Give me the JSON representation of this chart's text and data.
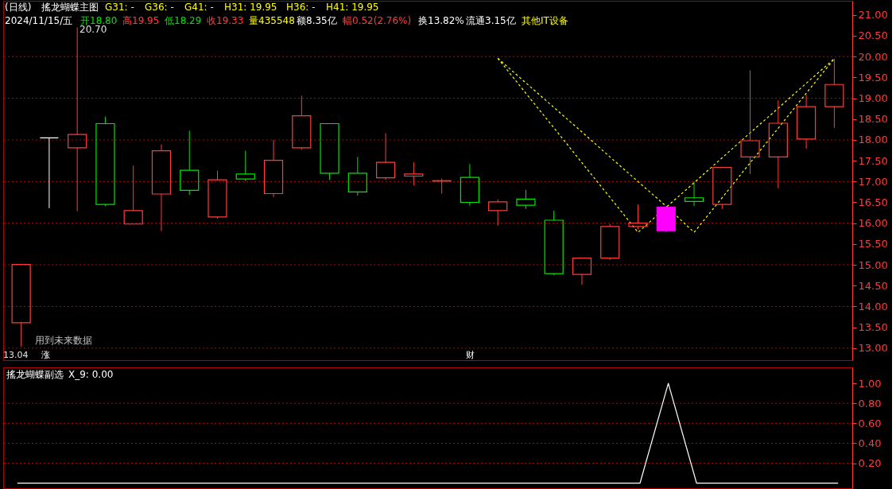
{
  "chart_data": [
    {
      "type": "candlestick",
      "title": "搖龙蝴蝶主图",
      "categories": [
        null,
        null,
        null,
        null,
        null,
        null,
        null,
        null,
        null,
        null,
        null,
        null,
        null,
        null,
        null,
        null,
        null,
        null,
        null,
        null,
        null,
        null,
        null,
        null,
        null,
        null,
        null,
        null,
        null,
        null
      ],
      "ohlc": [
        [
          13.61,
          15.01,
          13.04,
          15.01
        ],
        [
          18.05,
          18.05,
          16.36,
          18.05
        ],
        [
          17.81,
          20.7,
          16.29,
          18.13
        ],
        [
          18.39,
          18.56,
          16.41,
          16.45
        ],
        [
          15.98,
          17.38,
          15.98,
          16.3
        ],
        [
          16.7,
          17.89,
          15.81,
          17.74
        ],
        [
          17.27,
          18.22,
          16.68,
          16.79
        ],
        [
          16.15,
          17.26,
          16.11,
          17.04
        ],
        [
          17.18,
          17.74,
          17.01,
          17.06
        ],
        [
          16.71,
          18.0,
          16.63,
          17.51
        ],
        [
          17.81,
          19.06,
          17.76,
          18.58
        ],
        [
          18.39,
          18.39,
          17.04,
          17.2
        ],
        [
          17.2,
          17.59,
          16.66,
          16.75
        ],
        [
          17.09,
          18.16,
          17.04,
          17.46
        ],
        [
          17.13,
          17.46,
          16.91,
          17.18
        ],
        [
          17.01,
          17.07,
          16.71,
          17.02
        ],
        [
          17.1,
          17.42,
          16.42,
          16.5
        ],
        [
          16.3,
          16.57,
          15.94,
          16.51
        ],
        [
          16.58,
          16.8,
          16.34,
          16.43
        ],
        [
          16.07,
          16.3,
          14.75,
          14.79
        ],
        [
          14.77,
          15.16,
          14.52,
          15.16
        ],
        [
          15.16,
          15.98,
          15.12,
          15.92
        ],
        [
          15.92,
          16.45,
          15.85,
          16.0
        ],
        [
          15.82,
          16.39,
          15.78,
          16.39
        ],
        [
          16.61,
          17.0,
          16.41,
          16.52
        ],
        [
          16.45,
          17.34,
          16.34,
          17.34
        ],
        [
          17.59,
          19.67,
          17.18,
          17.98
        ],
        [
          17.59,
          18.95,
          16.84,
          18.4
        ],
        [
          18.02,
          19.08,
          17.79,
          18.8
        ],
        [
          18.8,
          19.95,
          18.29,
          19.33
        ]
      ],
      "colors": [
        "#ff3c3c",
        "#ffffff",
        "#ff3c3c",
        "#00e600",
        "#ff3c3c",
        "#ff3c3c",
        "#00e600",
        "#ff3c3c",
        "#00e600",
        "#ff3c3c",
        "#ff3c3c",
        "#00e600",
        "#00e600",
        "#ff3c3c",
        "#ff3c3c",
        "#ff3c3c",
        "#00e600",
        "#ff3c3c",
        "#00e600",
        "#00e600",
        "#ff3c3c",
        "#ff3c3c",
        "#ff3c3c",
        "#ff00ff",
        "#00e600",
        "#ff3c3c",
        "#ff3c3c",
        "#ff3c3c",
        "#ff3c3c",
        "#ff3c3c"
      ],
      "series": [
        {
          "type": "line",
          "color": "#ffff00",
          "line_style": "dashed",
          "values": [
            null,
            null,
            null,
            null,
            null,
            null,
            null,
            null,
            null,
            null,
            null,
            null,
            null,
            null,
            null,
            null,
            null,
            19.96,
            19.12,
            18.29,
            17.45,
            16.62,
            15.78,
            16.38,
            16.97,
            17.57,
            18.17,
            18.76,
            19.36,
            19.95
          ]
        },
        {
          "type": "line",
          "color": "#ffff00",
          "line_style": "dashed",
          "values": [
            null,
            null,
            null,
            null,
            null,
            null,
            null,
            null,
            null,
            null,
            null,
            null,
            null,
            null,
            null,
            null,
            null,
            19.96,
            19.37,
            18.78,
            18.19,
            17.59,
            17.0,
            16.41,
            15.78,
            16.61,
            17.45,
            18.28,
            19.12,
            19.95
          ]
        }
      ],
      "ylim": [
        12.71,
        21.34
      ],
      "yticks": [
        {
          "value": 13,
          "label": "13.00"
        },
        {
          "value": 13.5,
          "label": "13.50"
        },
        {
          "value": 14,
          "label": "14.00"
        },
        {
          "value": 14.5,
          "label": "14.50"
        },
        {
          "value": 15,
          "label": "15.00"
        },
        {
          "value": 15.5,
          "label": "15.50"
        },
        {
          "value": 16,
          "label": "16.00"
        },
        {
          "value": 16.5,
          "label": "16.50"
        },
        {
          "value": 17,
          "label": "17.00"
        },
        {
          "value": 17.5,
          "label": "17.50"
        },
        {
          "value": 18,
          "label": "18.00"
        },
        {
          "value": 18.5,
          "label": "18.50"
        },
        {
          "value": 19,
          "label": "19.00"
        },
        {
          "value": 19.5,
          "label": "19.50"
        },
        {
          "value": 20,
          "label": "20.00"
        },
        {
          "value": 20.5,
          "label": "20.50"
        },
        {
          "value": 21,
          "label": "21.00"
        }
      ],
      "ref_lines": [
        {
          "axis": "y",
          "value": 13,
          "color": "#c00000",
          "line_style": "dotted"
        },
        {
          "axis": "y",
          "value": 14,
          "color": "#c00000",
          "line_style": "dotted"
        },
        {
          "axis": "y",
          "value": 15,
          "color": "#c00000",
          "line_style": "dotted"
        },
        {
          "axis": "y",
          "value": 16,
          "color": "#c00000",
          "line_style": "dotted"
        },
        {
          "axis": "y",
          "value": 17,
          "color": "#c00000",
          "line_style": "dotted"
        },
        {
          "axis": "y",
          "value": 18,
          "color": "#c00000",
          "line_style": "dotted"
        },
        {
          "axis": "y",
          "value": 19,
          "color": "#c00000",
          "line_style": "dotted"
        },
        {
          "axis": "y",
          "value": 20,
          "color": "#c00000",
          "line_style": "dotted"
        }
      ],
      "tick_labels": "y",
      "annotations": [
        "(日线)",
        "G31: -",
        "G36: -",
        "G41: -",
        "H31: 19.95",
        "H36: -",
        "H41: 19.95",
        "2024/11/15/五",
        "开18.80",
        "高19.95",
        "低18.29",
        "收19.33",
        "量435548",
        "额8.35亿",
        "幅0.52(2.76%)",
        "换13.82%",
        "流通3.15亿",
        "其他IT设备",
        "用到未来数据",
        "涨",
        "财",
        "20.70",
        "13.04"
      ]
    },
    {
      "type": "line",
      "title": "搖龙蝴蝶副选",
      "categories": [
        null,
        null,
        null,
        null,
        null,
        null,
        null,
        null,
        null,
        null,
        null,
        null,
        null,
        null,
        null,
        null,
        null,
        null,
        null,
        null,
        null,
        null,
        null,
        null,
        null,
        null,
        null,
        null,
        null,
        null
      ],
      "series": [
        {
          "color": "#ffffff",
          "values": [
            0,
            0,
            0,
            0,
            0,
            0,
            0,
            0,
            0,
            0,
            0,
            0,
            0,
            0,
            0,
            0,
            0,
            0,
            0,
            0,
            0,
            0,
            0,
            1,
            0,
            0,
            0,
            0,
            0,
            0
          ]
        }
      ],
      "ylim": [
        -0.05,
        1.16
      ],
      "yticks": [
        {
          "value": 0.2,
          "label": "0.20"
        },
        {
          "value": 0.4,
          "label": "0.40"
        },
        {
          "value": 0.6,
          "label": "0.60"
        },
        {
          "value": 0.8,
          "label": "0.80"
        },
        {
          "value": 1.0,
          "label": "1.00"
        }
      ],
      "ref_lines": [
        {
          "axis": "y",
          "value": 0.2,
          "color": "#c00000",
          "line_style": "dotted"
        },
        {
          "axis": "y",
          "value": 0.4,
          "color": "#c00000",
          "line_style": "dotted"
        },
        {
          "axis": "y",
          "value": 0.6,
          "color": "#c00000",
          "line_style": "dotted"
        },
        {
          "axis": "y",
          "value": 0.8,
          "color": "#c00000",
          "line_style": "dotted"
        }
      ],
      "tick_labels": "y",
      "annotations": [
        "X_9: 0.00"
      ]
    }
  ]
}
